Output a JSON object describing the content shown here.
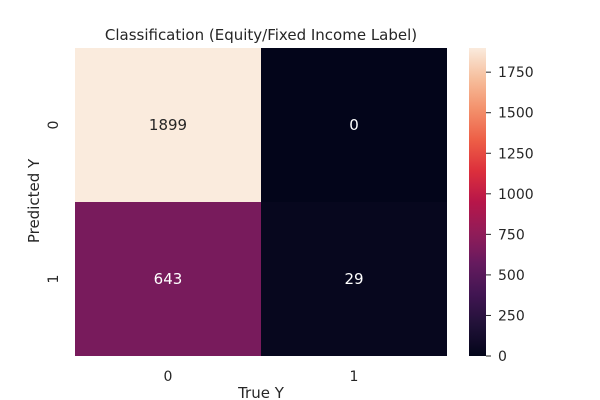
{
  "chart_data": {
    "type": "heatmap",
    "title": "Classification (Equity/Fixed Income Label)",
    "xlabel": "True Y",
    "ylabel": "Predicted Y",
    "x_categories": [
      "0",
      "1"
    ],
    "y_categories": [
      "0",
      "1"
    ],
    "values": [
      [
        1899,
        0
      ],
      [
        643,
        29
      ]
    ],
    "cell_labels": [
      [
        "1899",
        "0"
      ],
      [
        "643",
        "29"
      ]
    ],
    "colorbar": {
      "min": 0,
      "max": 1899,
      "ticks": [
        0,
        250,
        500,
        750,
        1000,
        1250,
        1500,
        1750
      ]
    },
    "colormap": "rocket",
    "cell_text_colors": {
      "on_light": "#262626",
      "on_dark": "#ffffff"
    }
  }
}
